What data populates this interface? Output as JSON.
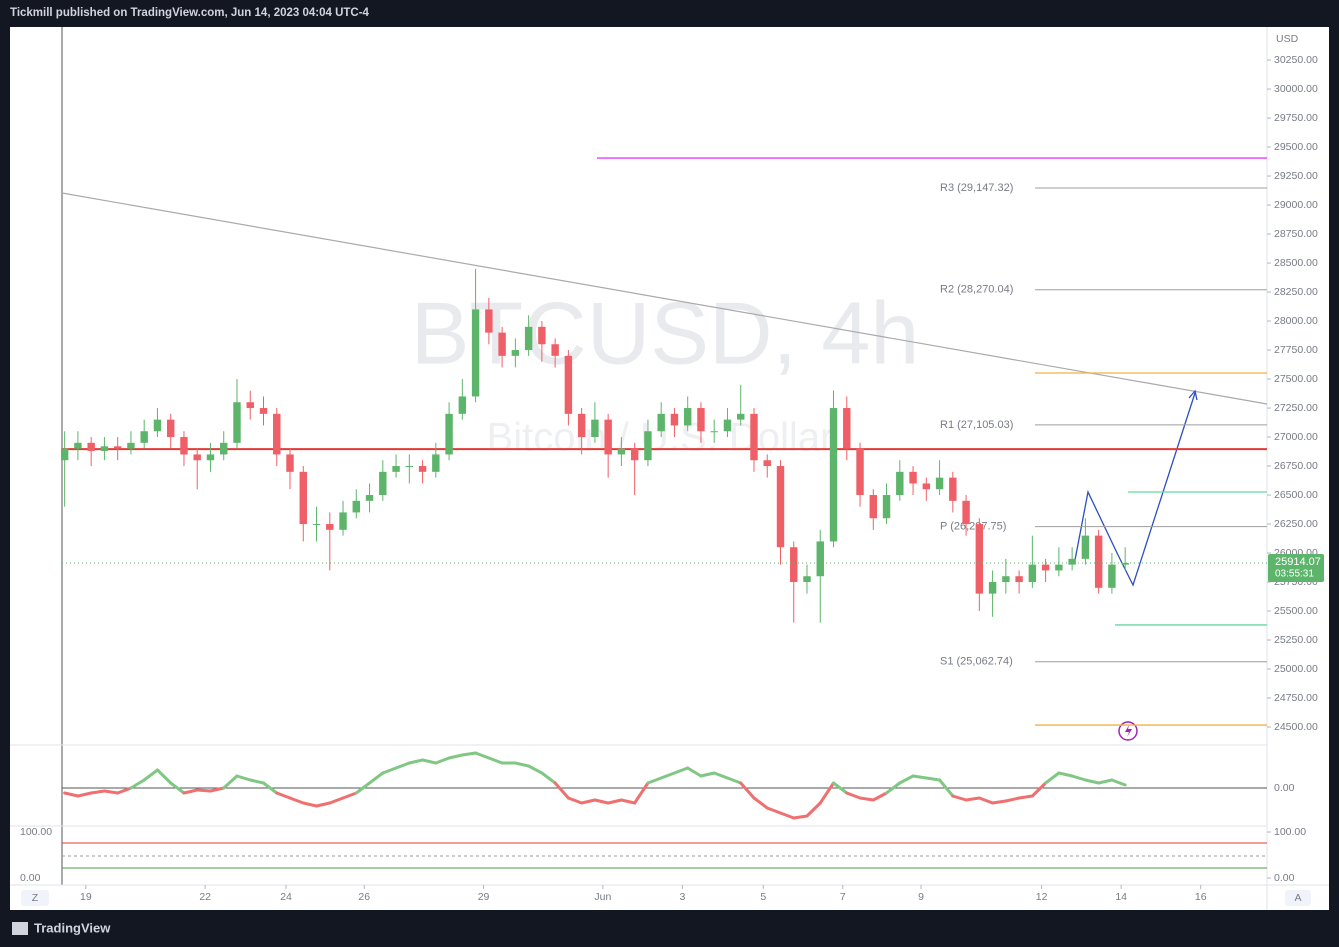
{
  "header": "Tickmill published on TradingView.com, Jun 14, 2023 04:04 UTC-4",
  "footer": "TradingView",
  "buttons": [
    "Z",
    "A"
  ],
  "chart_data": {
    "type": "candlestick",
    "watermark": "BTCUSD, 4h",
    "description": "Bitcoin / U.S. Dollar",
    "currency": "USD",
    "countdown": "03:55:31",
    "up_color": "#5db56b",
    "down_color": "#ef5f67",
    "open": [
      26800,
      26900,
      26950,
      26880,
      26920,
      26900,
      26950,
      27050,
      27150,
      27000,
      26850,
      26800,
      26850,
      26950,
      27300,
      27250,
      27200,
      26850,
      26700,
      26250,
      26250,
      26200,
      26350,
      26450,
      26500,
      26700,
      26750,
      26750,
      26700,
      26850,
      27200,
      27350,
      28100,
      27900,
      27700,
      27750,
      27950,
      27800,
      27700,
      27200,
      27000,
      27150,
      26850,
      26900,
      26800,
      27050,
      27200,
      27100,
      27250,
      27050,
      27050,
      27150,
      27200,
      26800,
      26750,
      26050,
      25750,
      25800,
      26100,
      27250,
      26900,
      26500,
      26300,
      26500,
      26700,
      26600,
      26550,
      26650,
      26450,
      26250,
      25650,
      25750,
      25800,
      25750,
      25900,
      25850,
      25900,
      25950,
      26150,
      25700,
      25900
    ],
    "high": [
      27050,
      27050,
      27000,
      27000,
      27000,
      27050,
      27150,
      27250,
      27200,
      27050,
      26900,
      26950,
      27050,
      27500,
      27400,
      27350,
      27250,
      26900,
      26750,
      26400,
      26350,
      26450,
      26550,
      26600,
      26800,
      26850,
      26850,
      26800,
      26950,
      27300,
      27500,
      28450,
      28200,
      27950,
      27850,
      28050,
      28000,
      27850,
      27750,
      27250,
      27300,
      27200,
      27000,
      26950,
      27150,
      27300,
      27250,
      27350,
      27300,
      27150,
      27250,
      27450,
      27250,
      26850,
      26800,
      26100,
      25900,
      26200,
      27400,
      27350,
      26950,
      26550,
      26600,
      26800,
      26750,
      26650,
      26800,
      26700,
      26500,
      26300,
      25850,
      25950,
      25850,
      26150,
      25950,
      26050,
      26050,
      26300,
      26200,
      26000,
      26050
    ],
    "low": [
      26400,
      26800,
      26750,
      26800,
      26800,
      26850,
      26900,
      27000,
      26900,
      26750,
      26550,
      26700,
      26800,
      26900,
      27150,
      27100,
      26750,
      26550,
      26100,
      26100,
      25850,
      26150,
      26300,
      26350,
      26450,
      26650,
      26600,
      26600,
      26650,
      26800,
      27150,
      27300,
      27800,
      27600,
      27600,
      27700,
      27650,
      27600,
      27100,
      26850,
      26950,
      26650,
      26750,
      26500,
      26750,
      27000,
      27000,
      27050,
      26950,
      26950,
      27000,
      27100,
      26700,
      26650,
      25900,
      25400,
      25650,
      25400,
      26050,
      26800,
      26400,
      26200,
      26250,
      26450,
      26500,
      26450,
      26500,
      26350,
      26150,
      25500,
      25450,
      25650,
      25650,
      25700,
      25750,
      25800,
      25850,
      25900,
      25650,
      25650,
      25850
    ],
    "close": [
      26900,
      26950,
      26880,
      26920,
      26900,
      26950,
      27050,
      27150,
      27000,
      26850,
      26800,
      26850,
      26950,
      27300,
      27250,
      27200,
      26850,
      26700,
      26250,
      26250,
      26200,
      26350,
      26450,
      26500,
      26700,
      26750,
      26750,
      26700,
      26850,
      27200,
      27350,
      28100,
      27900,
      27700,
      27750,
      27950,
      27800,
      27700,
      27200,
      27000,
      27150,
      26850,
      26900,
      26800,
      27050,
      27200,
      27100,
      27250,
      27050,
      27050,
      27150,
      27200,
      26800,
      26750,
      26050,
      25750,
      25800,
      26100,
      27250,
      26900,
      26500,
      26300,
      26500,
      26700,
      26600,
      26550,
      26650,
      26450,
      26250,
      25650,
      25750,
      25800,
      25750,
      25900,
      25850,
      25900,
      25950,
      26150,
      25700,
      25900,
      25914.07
    ],
    "xlim": [
      -0.2,
      90.7
    ],
    "xticks": [
      {
        "value": 1.6,
        "label": "19"
      },
      {
        "value": 10.6,
        "label": "22"
      },
      {
        "value": 16.7,
        "label": "24"
      },
      {
        "value": 22.6,
        "label": "26"
      },
      {
        "value": 31.6,
        "label": "29"
      },
      {
        "value": 40.6,
        "label": "Jun"
      },
      {
        "value": 46.6,
        "label": "3"
      },
      {
        "value": 52.7,
        "label": "5"
      },
      {
        "value": 58.7,
        "label": "7"
      },
      {
        "value": 64.6,
        "label": "9"
      },
      {
        "value": 73.7,
        "label": "12"
      },
      {
        "value": 79.7,
        "label": "14"
      },
      {
        "value": 85.7,
        "label": "16"
      }
    ],
    "ylim": [
      24345,
      30535
    ],
    "yticks": [
      {
        "value": 24500,
        "label": "24500.00"
      },
      {
        "value": 24750,
        "label": "24750.00"
      },
      {
        "value": 25000,
        "label": "25000.00"
      },
      {
        "value": 25250,
        "label": "25250.00"
      },
      {
        "value": 25500,
        "label": "25500.00"
      },
      {
        "value": 25750,
        "label": "25750.00"
      },
      {
        "value": 26000,
        "label": "26000.00"
      },
      {
        "value": 26250,
        "label": "26250.00"
      },
      {
        "value": 26500,
        "label": "26500.00"
      },
      {
        "value": 26750,
        "label": "26750.00"
      },
      {
        "value": 27000,
        "label": "27000.00"
      },
      {
        "value": 27250,
        "label": "27250.00"
      },
      {
        "value": 27500,
        "label": "27500.00"
      },
      {
        "value": 27750,
        "label": "27750.00"
      },
      {
        "value": 28000,
        "label": "28000.00"
      },
      {
        "value": 28250,
        "label": "28250.00"
      },
      {
        "value": 28500,
        "label": "28500.00"
      },
      {
        "value": 28750,
        "label": "28750.00"
      },
      {
        "value": 29000,
        "label": "29000.00"
      },
      {
        "value": 29250,
        "label": "29250.00"
      },
      {
        "value": 29500,
        "label": "29500.00"
      },
      {
        "value": 29750,
        "label": "29750.00"
      },
      {
        "value": 30000,
        "label": "30000.00"
      },
      {
        "value": 30250,
        "label": "30250.00"
      }
    ],
    "pivots": [
      {
        "label": "R3 (29,147.32)",
        "value": 29147.32
      },
      {
        "label": "R2 (28,270.04)",
        "value": 28270.04
      },
      {
        "label": "R1 (27,105.03)",
        "value": 27105.03
      },
      {
        "label": "P (26,227.75)",
        "value": 26227.75
      },
      {
        "label": "S1 (25,062.74)",
        "value": 25062.74
      }
    ],
    "levels": [
      {
        "value": 29405,
        "color": "#e040fb"
      },
      {
        "value": 26896,
        "color": "#e53935"
      },
      {
        "value": 26526,
        "color": "#66d9a0"
      },
      {
        "value": 25380,
        "color": "#66d9a0"
      },
      {
        "value": 27552,
        "color": "#f5b041"
      },
      {
        "value": 24517,
        "color": "#f5b041"
      }
    ],
    "oscillator": {
      "ylim": [
        -37,
        38
      ],
      "yticks": [
        {
          "value": 0,
          "label": "0.00"
        }
      ],
      "values": [
        -5,
        -8,
        -5,
        -3,
        -5,
        0,
        8,
        18,
        5,
        -5,
        -2,
        -3,
        0,
        12,
        8,
        5,
        -5,
        -10,
        -15,
        -18,
        -15,
        -10,
        -5,
        5,
        15,
        20,
        25,
        28,
        25,
        30,
        33,
        35,
        30,
        25,
        25,
        22,
        15,
        5,
        -10,
        -15,
        -12,
        -15,
        -12,
        -15,
        5,
        10,
        15,
        20,
        12,
        15,
        10,
        5,
        -10,
        -20,
        -25,
        -30,
        -28,
        -15,
        5,
        -5,
        -10,
        -12,
        -5,
        5,
        12,
        10,
        8,
        -8,
        -12,
        -10,
        -15,
        -13,
        -10,
        -8,
        5,
        15,
        12,
        8,
        5,
        8,
        3
      ]
    },
    "stochastic": {
      "ylim": [
        0,
        100
      ],
      "yticks": [
        {
          "value": 100,
          "label": "100.00"
        },
        {
          "value": 0,
          "label": "0.00"
        }
      ]
    }
  }
}
